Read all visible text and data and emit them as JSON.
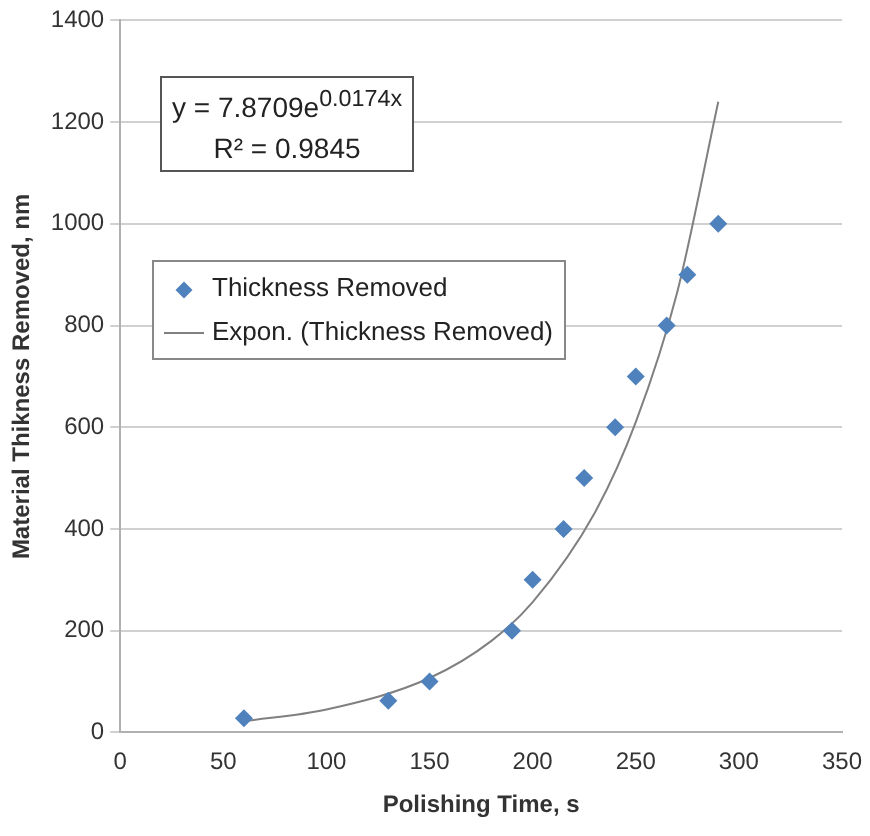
{
  "chart_data": {
    "type": "scatter",
    "xlabel": "Polishing Time, s",
    "ylabel": "Material Thikness Removed, nm",
    "xlim": [
      0,
      350
    ],
    "xticks": [
      0,
      50,
      100,
      150,
      200,
      250,
      300,
      350
    ],
    "ylim": [
      0,
      1400
    ],
    "yticks": [
      0,
      200,
      400,
      600,
      800,
      1000,
      1200,
      1400
    ],
    "grid": "y",
    "legend": "left",
    "marker": "diamond",
    "annotations": [
      "y = 7.8709e$^{0.0174x}$",
      "R² = 0.9845"
    ],
    "series": [
      {
        "name": "Thickness Removed",
        "type": "scatter",
        "color": "#4f81bd",
        "x": [
          60,
          130,
          150,
          190,
          200,
          215,
          225,
          240,
          250,
          265,
          275,
          290
        ],
        "values": [
          28,
          62,
          100,
          200,
          300,
          400,
          500,
          600,
          700,
          800,
          900,
          1000
        ]
      },
      {
        "name": "Expon. (Thickness Removed)",
        "type": "line",
        "color": "#808080",
        "marker": "none",
        "x": [
          60,
          100,
          150,
          180,
          200,
          230,
          250,
          270,
          290
        ],
        "values": [
          22,
          45,
          107,
          180,
          256,
          431,
          610,
          864,
          1240
        ]
      }
    ]
  }
}
